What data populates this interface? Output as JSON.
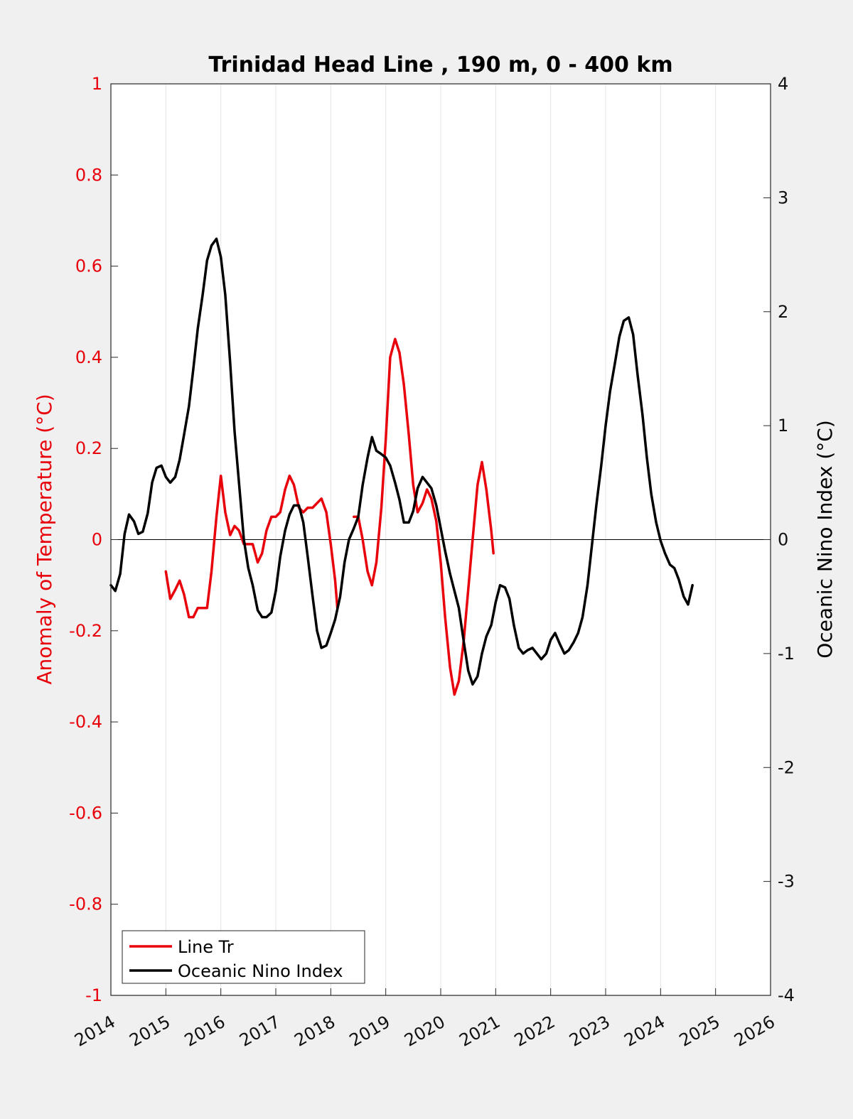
{
  "chart_data": {
    "type": "line",
    "title": "Trinidad Head Line , 190 m, 0 - 400 km",
    "ylabel_left": "Anomaly of Temperature (°C)",
    "ylabel_right": "Oceanic Nino Index (°C)",
    "xlim": [
      2014,
      2026
    ],
    "ylim_left": [
      -1,
      1
    ],
    "ylim_right": [
      -4,
      4
    ],
    "x_ticks": [
      "2014",
      "2015",
      "2016",
      "2017",
      "2018",
      "2019",
      "2020",
      "2021",
      "2022",
      "2023",
      "2024",
      "2025",
      "2026"
    ],
    "y_ticks_left": [
      "1",
      "0.8",
      "0.6",
      "0.4",
      "0.2",
      "0",
      "-0.2",
      "-0.4",
      "-0.6",
      "-0.8",
      "-1"
    ],
    "y_ticks_right": [
      "4",
      "3",
      "2",
      "1",
      "0",
      "-1",
      "-2",
      "-3",
      "-4"
    ],
    "grid": "vertical",
    "legend_position": "bottom-left",
    "legend": [
      "Line Tr",
      "Oceanic Nino Index"
    ],
    "colors": {
      "line_tr": "#e8000b",
      "oni": "#000000",
      "zero_line": "#000000"
    },
    "series": [
      {
        "name": "Line Tr",
        "axis": "left",
        "segments": [
          [
            [
              2015.0,
              -0.07
            ],
            [
              2015.08,
              -0.13
            ],
            [
              2015.17,
              -0.11
            ],
            [
              2015.25,
              -0.09
            ],
            [
              2015.33,
              -0.12
            ],
            [
              2015.42,
              -0.17
            ],
            [
              2015.5,
              -0.17
            ],
            [
              2015.58,
              -0.15
            ],
            [
              2015.67,
              -0.15
            ],
            [
              2015.75,
              -0.15
            ],
            [
              2015.83,
              -0.07
            ],
            [
              2015.92,
              0.05
            ],
            [
              2016.0,
              0.14
            ],
            [
              2016.08,
              0.06
            ],
            [
              2016.17,
              0.01
            ],
            [
              2016.25,
              0.03
            ],
            [
              2016.33,
              0.02
            ],
            [
              2016.42,
              -0.01
            ],
            [
              2016.5,
              -0.01
            ],
            [
              2016.58,
              -0.01
            ],
            [
              2016.67,
              -0.05
            ],
            [
              2016.75,
              -0.03
            ],
            [
              2016.83,
              0.02
            ],
            [
              2016.92,
              0.05
            ],
            [
              2017.0,
              0.05
            ],
            [
              2017.08,
              0.06
            ],
            [
              2017.17,
              0.11
            ],
            [
              2017.25,
              0.14
            ],
            [
              2017.33,
              0.12
            ],
            [
              2017.42,
              0.07
            ],
            [
              2017.5,
              0.06
            ],
            [
              2017.58,
              0.07
            ],
            [
              2017.67,
              0.07
            ],
            [
              2017.75,
              0.08
            ],
            [
              2017.83,
              0.09
            ],
            [
              2017.92,
              0.06
            ],
            [
              2018.0,
              -0.01
            ],
            [
              2018.08,
              -0.09
            ],
            [
              2018.12,
              -0.15
            ]
          ],
          [
            [
              2018.42,
              0.05
            ],
            [
              2018.5,
              0.05
            ],
            [
              2018.58,
              0.0
            ],
            [
              2018.67,
              -0.07
            ],
            [
              2018.75,
              -0.1
            ],
            [
              2018.83,
              -0.05
            ],
            [
              2018.92,
              0.07
            ],
            [
              2019.0,
              0.22
            ],
            [
              2019.08,
              0.4
            ],
            [
              2019.17,
              0.44
            ],
            [
              2019.25,
              0.41
            ],
            [
              2019.33,
              0.34
            ],
            [
              2019.42,
              0.23
            ],
            [
              2019.5,
              0.12
            ],
            [
              2019.58,
              0.06
            ],
            [
              2019.67,
              0.08
            ],
            [
              2019.75,
              0.11
            ],
            [
              2019.83,
              0.09
            ],
            [
              2019.92,
              0.04
            ],
            [
              2020.0,
              -0.05
            ],
            [
              2020.08,
              -0.17
            ],
            [
              2020.17,
              -0.28
            ],
            [
              2020.25,
              -0.34
            ],
            [
              2020.33,
              -0.31
            ],
            [
              2020.42,
              -0.22
            ],
            [
              2020.5,
              -0.11
            ],
            [
              2020.58,
              0.0
            ],
            [
              2020.67,
              0.12
            ],
            [
              2020.75,
              0.17
            ],
            [
              2020.83,
              0.11
            ],
            [
              2020.92,
              0.02
            ],
            [
              2020.96,
              -0.03
            ]
          ]
        ]
      },
      {
        "name": "Oceanic Nino Index",
        "axis": "right",
        "segments": [
          [
            [
              2014.0,
              -0.4
            ],
            [
              2014.08,
              -0.45
            ],
            [
              2014.17,
              -0.3
            ],
            [
              2014.25,
              0.05
            ],
            [
              2014.33,
              0.22
            ],
            [
              2014.42,
              0.16
            ],
            [
              2014.5,
              0.05
            ],
            [
              2014.58,
              0.07
            ],
            [
              2014.67,
              0.23
            ],
            [
              2014.75,
              0.5
            ],
            [
              2014.83,
              0.63
            ],
            [
              2014.92,
              0.65
            ],
            [
              2015.0,
              0.55
            ],
            [
              2015.08,
              0.5
            ],
            [
              2015.17,
              0.55
            ],
            [
              2015.25,
              0.7
            ],
            [
              2015.33,
              0.92
            ],
            [
              2015.42,
              1.17
            ],
            [
              2015.5,
              1.5
            ],
            [
              2015.58,
              1.85
            ],
            [
              2015.67,
              2.15
            ],
            [
              2015.75,
              2.45
            ],
            [
              2015.83,
              2.58
            ],
            [
              2015.92,
              2.64
            ],
            [
              2016.0,
              2.48
            ],
            [
              2016.08,
              2.15
            ],
            [
              2016.17,
              1.55
            ],
            [
              2016.25,
              0.95
            ],
            [
              2016.33,
              0.5
            ],
            [
              2016.42,
              0.0
            ],
            [
              2016.5,
              -0.25
            ],
            [
              2016.58,
              -0.4
            ],
            [
              2016.67,
              -0.62
            ],
            [
              2016.75,
              -0.68
            ],
            [
              2016.83,
              -0.68
            ],
            [
              2016.92,
              -0.64
            ],
            [
              2017.0,
              -0.45
            ],
            [
              2017.08,
              -0.15
            ],
            [
              2017.17,
              0.08
            ],
            [
              2017.25,
              0.22
            ],
            [
              2017.33,
              0.3
            ],
            [
              2017.42,
              0.3
            ],
            [
              2017.5,
              0.15
            ],
            [
              2017.58,
              -0.15
            ],
            [
              2017.67,
              -0.5
            ],
            [
              2017.75,
              -0.8
            ],
            [
              2017.83,
              -0.95
            ],
            [
              2017.92,
              -0.93
            ],
            [
              2018.0,
              -0.82
            ],
            [
              2018.08,
              -0.7
            ],
            [
              2018.17,
              -0.5
            ],
            [
              2018.25,
              -0.2
            ],
            [
              2018.33,
              0.0
            ],
            [
              2018.42,
              0.1
            ],
            [
              2018.5,
              0.2
            ],
            [
              2018.58,
              0.48
            ],
            [
              2018.67,
              0.72
            ],
            [
              2018.75,
              0.9
            ],
            [
              2018.83,
              0.78
            ],
            [
              2018.92,
              0.75
            ],
            [
              2019.0,
              0.72
            ],
            [
              2019.08,
              0.65
            ],
            [
              2019.17,
              0.5
            ],
            [
              2019.25,
              0.35
            ],
            [
              2019.33,
              0.15
            ],
            [
              2019.42,
              0.15
            ],
            [
              2019.5,
              0.25
            ],
            [
              2019.58,
              0.45
            ],
            [
              2019.67,
              0.55
            ],
            [
              2019.75,
              0.5
            ],
            [
              2019.83,
              0.45
            ],
            [
              2019.92,
              0.3
            ],
            [
              2020.0,
              0.1
            ],
            [
              2020.08,
              -0.1
            ],
            [
              2020.17,
              -0.3
            ],
            [
              2020.25,
              -0.45
            ],
            [
              2020.33,
              -0.6
            ],
            [
              2020.42,
              -0.9
            ],
            [
              2020.5,
              -1.15
            ],
            [
              2020.58,
              -1.27
            ],
            [
              2020.67,
              -1.2
            ],
            [
              2020.75,
              -1.0
            ],
            [
              2020.83,
              -0.85
            ],
            [
              2020.92,
              -0.75
            ],
            [
              2021.0,
              -0.55
            ],
            [
              2021.08,
              -0.4
            ],
            [
              2021.17,
              -0.42
            ],
            [
              2021.25,
              -0.52
            ],
            [
              2021.33,
              -0.75
            ],
            [
              2021.42,
              -0.95
            ],
            [
              2021.5,
              -1.0
            ],
            [
              2021.58,
              -0.97
            ],
            [
              2021.67,
              -0.95
            ],
            [
              2021.75,
              -1.0
            ],
            [
              2021.83,
              -1.05
            ],
            [
              2021.92,
              -1.0
            ],
            [
              2022.0,
              -0.88
            ],
            [
              2022.08,
              -0.82
            ],
            [
              2022.17,
              -0.92
            ],
            [
              2022.25,
              -1.0
            ],
            [
              2022.33,
              -0.97
            ],
            [
              2022.42,
              -0.9
            ],
            [
              2022.5,
              -0.82
            ],
            [
              2022.58,
              -0.68
            ],
            [
              2022.67,
              -0.4
            ],
            [
              2022.75,
              -0.05
            ],
            [
              2022.83,
              0.3
            ],
            [
              2022.92,
              0.65
            ],
            [
              2023.0,
              1.0
            ],
            [
              2023.08,
              1.3
            ],
            [
              2023.17,
              1.55
            ],
            [
              2023.25,
              1.78
            ],
            [
              2023.33,
              1.92
            ],
            [
              2023.42,
              1.95
            ],
            [
              2023.5,
              1.8
            ],
            [
              2023.58,
              1.45
            ],
            [
              2023.67,
              1.1
            ],
            [
              2023.75,
              0.72
            ],
            [
              2023.83,
              0.4
            ],
            [
              2023.92,
              0.15
            ],
            [
              2024.0,
              -0.01
            ],
            [
              2024.08,
              -0.12
            ],
            [
              2024.17,
              -0.22
            ],
            [
              2024.25,
              -0.25
            ],
            [
              2024.33,
              -0.35
            ],
            [
              2024.42,
              -0.5
            ],
            [
              2024.5,
              -0.57
            ],
            [
              2024.58,
              -0.4
            ]
          ]
        ]
      }
    ]
  }
}
